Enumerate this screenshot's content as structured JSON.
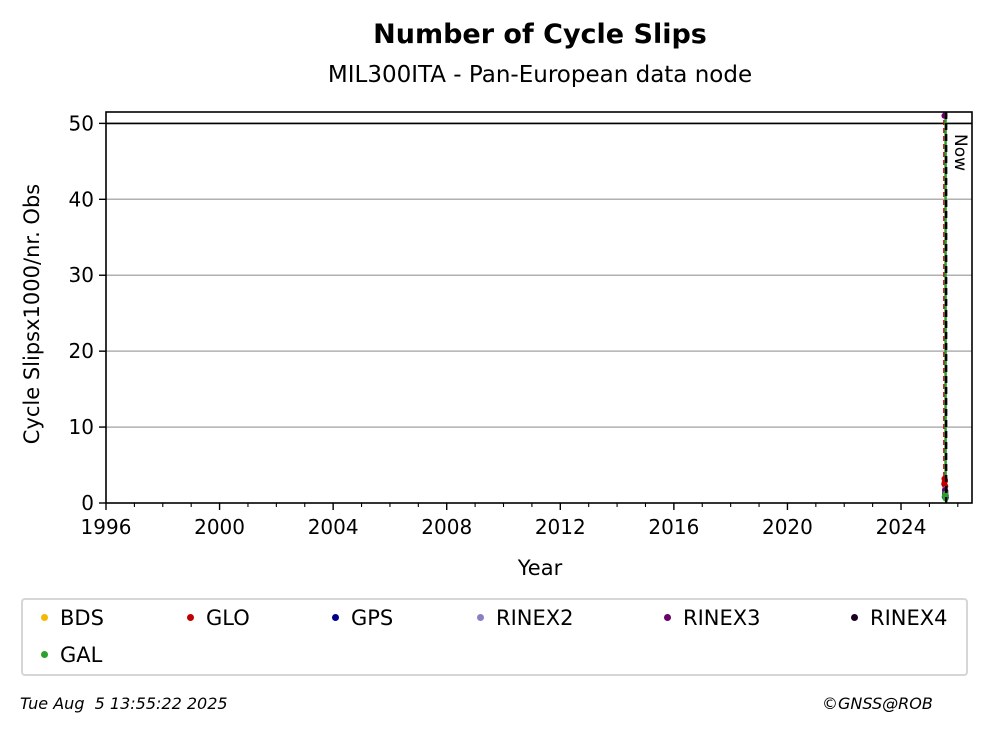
{
  "chart_data": {
    "type": "scatter",
    "title": "Number of Cycle Slips",
    "subtitle": "MIL300ITA - Pan-European data node",
    "xlabel": "Year",
    "ylabel": "Cycle Slipsx1000/nr. Obs",
    "xlim": [
      1996,
      2026.5
    ],
    "ylim": [
      0,
      51.5
    ],
    "xticks": [
      1996,
      2000,
      2004,
      2008,
      2012,
      2016,
      2020,
      2024
    ],
    "yticks": [
      0,
      10,
      20,
      30,
      40,
      50
    ],
    "grid": "horizontal",
    "reference_line_y": 50,
    "now_marker": {
      "x": 2025.59,
      "label": "Now"
    },
    "series": [
      {
        "name": "BDS",
        "color": "#f5b800",
        "x": [
          2025.55,
          2025.56,
          2025.57
        ],
        "y": [
          1.2,
          1.5,
          1.0
        ]
      },
      {
        "name": "GLO",
        "color": "#c00000",
        "x": [
          2025.52,
          2025.53,
          2025.54,
          2025.55,
          2025.56
        ],
        "y": [
          2.5,
          3.2,
          2.8,
          3.0,
          2.2
        ]
      },
      {
        "name": "GPS",
        "color": "#00008b",
        "x": [
          2025.54,
          2025.55,
          2025.56,
          2025.57,
          2025.58
        ],
        "y": [
          0.8,
          1.3,
          1.6,
          1.0,
          0.7
        ]
      },
      {
        "name": "RINEX2",
        "color": "#8a7fc4",
        "x": [
          2025.55
        ],
        "y": [
          1.8
        ]
      },
      {
        "name": "RINEX3",
        "color": "#6a006a",
        "x": [
          2025.53,
          2025.55,
          2025.56
        ],
        "y": [
          51.0,
          1.7,
          1.4
        ]
      },
      {
        "name": "RINEX4",
        "color": "#1a0020",
        "x": [
          2025.56
        ],
        "y": [
          1.1
        ]
      },
      {
        "name": "GAL",
        "color": "#2ca02c",
        "x": [
          2025.55,
          2025.56,
          2025.57
        ],
        "y": [
          0.9,
          1.2,
          0.6
        ]
      }
    ],
    "legend_position": "bottom"
  },
  "footer": {
    "timestamp": "Tue Aug  5 13:55:22 2025",
    "credit": "©GNSS@ROB"
  }
}
